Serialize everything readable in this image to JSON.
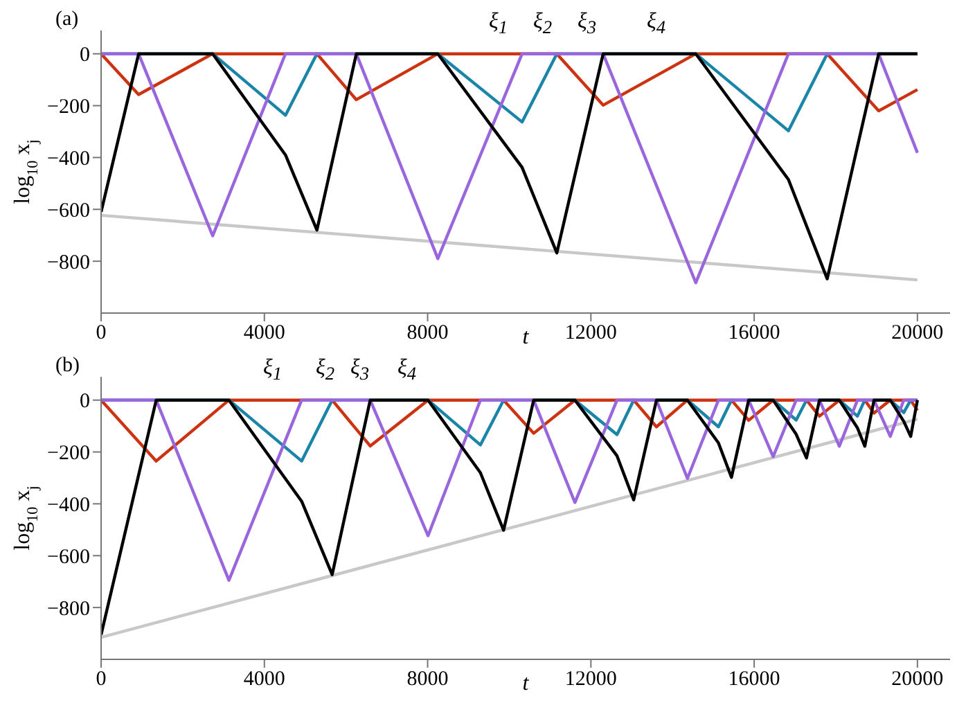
{
  "chart_data": [
    {
      "type": "line",
      "title": "(a)",
      "xlabel": "t",
      "ylabel": "log$_{10}$ x$_{j}$",
      "xlim": [
        0,
        20800
      ],
      "xticks": [
        0,
        4000,
        8000,
        12000,
        16000,
        20000
      ],
      "ylim": [
        -1000,
        90
      ],
      "yticks": [
        {
          "value": -800,
          "label": "−800"
        },
        {
          "value": -600,
          "label": "−600"
        },
        {
          "value": -400,
          "label": "−400"
        },
        {
          "value": -200,
          "label": "−200"
        },
        0
      ],
      "annotations": [
        "ξ$_{1}$",
        "ξ$_{2}$",
        "ξ$_{3}$",
        "ξ$_{4}$"
      ],
      "series": [
        {
          "color": "#c8c8c8",
          "x": [
            0,
            20000
          ],
          "values": [
            -623,
            -872
          ]
        },
        {
          "color": "#cc3311",
          "x": [
            0,
            919,
            2734,
            5287,
            6253,
            8250,
            11165,
            12300,
            14570,
            17790,
            19050,
            20000
          ],
          "values": [
            0,
            -157,
            0,
            0,
            -177,
            0,
            0,
            -198,
            0,
            0,
            -220,
            -138
          ]
        },
        {
          "color": "#1a85a8",
          "x": [
            0,
            2734,
            4517,
            5287,
            8250,
            10314,
            11165,
            14570,
            16840,
            17790,
            20000
          ],
          "values": [
            0,
            0,
            -237,
            0,
            0,
            -263,
            0,
            0,
            -297,
            0,
            0
          ]
        },
        {
          "color": "#9966dd",
          "x": [
            0,
            919,
            2734,
            4517,
            6253,
            8250,
            10314,
            12300,
            14570,
            16840,
            19050,
            20000
          ],
          "values": [
            0,
            0,
            -702,
            0,
            0,
            -790,
            0,
            0,
            -883,
            0,
            0,
            -382
          ]
        },
        {
          "color": "#000000",
          "x": [
            0,
            919,
            2734,
            4517,
            5287,
            6253,
            8250,
            10314,
            11165,
            12300,
            14570,
            16840,
            17790,
            19050,
            20000
          ],
          "values": [
            -610,
            0,
            0,
            -390,
            -680,
            0,
            0,
            -438,
            -768,
            0,
            0,
            -485,
            -868,
            0,
            0
          ]
        }
      ]
    },
    {
      "type": "line",
      "title": "(b)",
      "xlabel": "t",
      "ylabel": "log$_{10}$ x$_{j}$",
      "xlim": [
        0,
        20800
      ],
      "xticks": [
        0,
        4000,
        8000,
        12000,
        16000,
        20000
      ],
      "ylim": [
        -1000,
        90
      ],
      "yticks": [
        {
          "value": -800,
          "label": "−800"
        },
        {
          "value": -600,
          "label": "−600"
        },
        {
          "value": -400,
          "label": "−400"
        },
        {
          "value": -200,
          "label": "−200"
        },
        0
      ],
      "annotations": [
        "ξ$_{1}$",
        "ξ$_{2}$",
        "ξ$_{3}$",
        "ξ$_{4}$"
      ],
      "series": [
        {
          "color": "#c8c8c8",
          "x": [
            0,
            20000
          ],
          "values": [
            -915,
            -73
          ]
        },
        {
          "color": "#cc3311",
          "x": [
            0,
            1350,
            3132,
            5661,
            6593,
            8010,
            9861,
            10598,
            11608,
            13048,
            13606,
            14365,
            15444,
            15865,
            16466,
            17282,
            17600,
            18087,
            18711,
            18937,
            19335,
            19835,
            20000
          ],
          "values": [
            0,
            -235,
            0,
            0,
            -177,
            0,
            0,
            -128,
            0,
            0,
            -103,
            0,
            0,
            -78,
            0,
            0,
            -62,
            0,
            0,
            -50,
            0,
            0,
            -40
          ]
        },
        {
          "color": "#1a85a8",
          "x": [
            0,
            3132,
            4913,
            5661,
            8010,
            9293,
            9861,
            11608,
            12640,
            13048,
            14365,
            15125,
            15444,
            16466,
            17030,
            17282,
            18087,
            18530,
            18711,
            19335,
            19665,
            19835,
            20000
          ],
          "values": [
            0,
            0,
            -235,
            0,
            0,
            -173,
            0,
            0,
            -133,
            0,
            0,
            -103,
            0,
            0,
            -77,
            0,
            0,
            -62,
            0,
            0,
            -48,
            0,
            0
          ]
        },
        {
          "color": "#9966dd",
          "x": [
            0,
            1350,
            3132,
            4913,
            6593,
            8010,
            9293,
            10598,
            11608,
            12640,
            13606,
            14365,
            15125,
            15865,
            16466,
            17030,
            17600,
            18087,
            18530,
            18937,
            19335,
            19665,
            20000
          ],
          "values": [
            0,
            0,
            -695,
            0,
            0,
            -523,
            0,
            0,
            -395,
            0,
            0,
            -302,
            0,
            0,
            -218,
            0,
            0,
            -178,
            0,
            0,
            -140,
            0,
            0
          ]
        },
        {
          "color": "#000000",
          "x": [
            0,
            1350,
            3132,
            4913,
            5661,
            6593,
            8010,
            9293,
            9861,
            10598,
            11608,
            12640,
            13048,
            13606,
            14365,
            15125,
            15444,
            15865,
            16466,
            17030,
            17282,
            17600,
            18087,
            18530,
            18711,
            18937,
            19335,
            19665,
            19835,
            20000
          ],
          "values": [
            -905,
            0,
            0,
            -390,
            -673,
            0,
            0,
            -280,
            -502,
            0,
            0,
            -215,
            -385,
            0,
            0,
            -165,
            -298,
            0,
            0,
            -132,
            -223,
            0,
            0,
            -107,
            -178,
            0,
            0,
            -82,
            -140,
            0
          ]
        }
      ]
    }
  ]
}
